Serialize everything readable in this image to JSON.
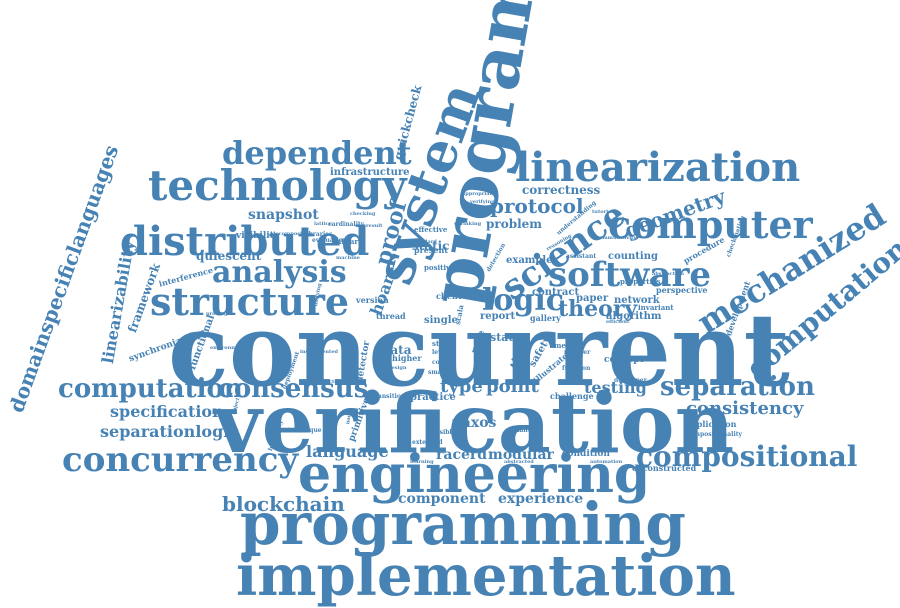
{
  "accent_color": "#4682b4",
  "words": [
    {
      "text": "concurrent"
    },
    {
      "text": "verification"
    },
    {
      "text": "programming"
    },
    {
      "text": "implementation"
    },
    {
      "text": "engineering"
    },
    {
      "text": "program"
    },
    {
      "text": "system"
    },
    {
      "text": "linearization"
    },
    {
      "text": "technology"
    },
    {
      "text": "distributed"
    },
    {
      "text": "structure"
    },
    {
      "text": "dependent"
    },
    {
      "text": "analysis"
    },
    {
      "text": "science"
    },
    {
      "text": "computer"
    },
    {
      "text": "software"
    },
    {
      "text": "logic"
    },
    {
      "text": "mechanized"
    },
    {
      "text": "computational"
    },
    {
      "text": "theory"
    },
    {
      "text": "protocol"
    },
    {
      "text": "geometry"
    },
    {
      "text": "computation"
    },
    {
      "text": "consensus"
    },
    {
      "text": "separation"
    },
    {
      "text": "concurrency"
    },
    {
      "text": "compositional"
    },
    {
      "text": "consistency"
    },
    {
      "text": "specification"
    },
    {
      "text": "separationlogic"
    },
    {
      "text": "blockchain"
    },
    {
      "text": "language"
    },
    {
      "text": "modular"
    },
    {
      "text": "racerd"
    },
    {
      "text": "paxos"
    },
    {
      "text": "type"
    },
    {
      "text": "point"
    },
    {
      "text": "testing"
    },
    {
      "text": "component"
    },
    {
      "text": "experience"
    },
    {
      "text": "domainspecificlanguages"
    },
    {
      "text": "linearizability"
    },
    {
      "text": "quickcheck"
    },
    {
      "text": "snapshot"
    },
    {
      "text": "infrastructure"
    },
    {
      "text": "correctness"
    },
    {
      "text": "counting"
    },
    {
      "text": "framework"
    },
    {
      "text": "synchronization"
    },
    {
      "text": "functional"
    },
    {
      "text": "quiescent"
    },
    {
      "text": "interference"
    },
    {
      "text": "visibility"
    },
    {
      "text": "hoare"
    },
    {
      "text": "proof"
    },
    {
      "text": "static"
    },
    {
      "text": "problem"
    },
    {
      "text": "example"
    },
    {
      "text": "contract"
    },
    {
      "text": "paper"
    },
    {
      "text": "network"
    },
    {
      "text": "algorithm"
    },
    {
      "text": "gallery"
    },
    {
      "text": "perspective"
    },
    {
      "text": "procedure"
    },
    {
      "text": "development"
    },
    {
      "text": "data"
    },
    {
      "text": "state"
    },
    {
      "text": "report"
    },
    {
      "text": "single"
    },
    {
      "text": "thread"
    },
    {
      "text": "version"
    },
    {
      "text": "client"
    },
    {
      "text": "practice"
    },
    {
      "text": "concept"
    },
    {
      "text": "challenge"
    },
    {
      "text": "condition"
    },
    {
      "text": "application"
    },
    {
      "text": "deconstructed"
    },
    {
      "text": "compositionality"
    },
    {
      "text": "present"
    },
    {
      "text": "effective"
    },
    {
      "text": "library"
    },
    {
      "text": "libraries"
    },
    {
      "text": "evaluation"
    },
    {
      "text": "cardinality"
    },
    {
      "text": "positive"
    },
    {
      "text": "scala"
    },
    {
      "text": "primitive"
    },
    {
      "text": "detector"
    },
    {
      "text": "race"
    },
    {
      "text": "safety"
    },
    {
      "text": "time"
    },
    {
      "text": "illustrate"
    },
    {
      "text": "method"
    },
    {
      "text": "function"
    },
    {
      "text": "developer"
    },
    {
      "text": "number"
    },
    {
      "text": "possible"
    },
    {
      "text": "semantic"
    },
    {
      "text": "extended"
    },
    {
      "text": "abstracted"
    },
    {
      "text": "automation"
    },
    {
      "text": "higher"
    },
    {
      "text": "style"
    },
    {
      "text": "level"
    },
    {
      "text": "code"
    },
    {
      "text": "smart"
    },
    {
      "text": "invariant"
    },
    {
      "text": "properties"
    },
    {
      "text": "abstraction"
    },
    {
      "text": "shrinking"
    },
    {
      "text": "standard"
    },
    {
      "text": "approach"
    },
    {
      "text": "technique"
    },
    {
      "text": "deployment"
    },
    {
      "text": "nodes"
    },
    {
      "text": "transition"
    },
    {
      "text": "design"
    },
    {
      "text": "efficient"
    },
    {
      "text": "checkmating"
    },
    {
      "text": "appropriate"
    },
    {
      "text": "understanding"
    },
    {
      "text": "detection"
    },
    {
      "text": "assistant"
    },
    {
      "text": "reasoning"
    },
    {
      "text": "tutorial"
    },
    {
      "text": "instrumented"
    },
    {
      "text": "unifying"
    },
    {
      "text": "machine"
    },
    {
      "text": "architecture"
    },
    {
      "text": "learning"
    },
    {
      "text": "proving"
    },
    {
      "text": "hierarchy"
    },
    {
      "text": "decomposition"
    },
    {
      "text": "environment"
    },
    {
      "text": "object"
    },
    {
      "text": "result"
    },
    {
      "text": "verifying"
    },
    {
      "text": "lattice"
    },
    {
      "text": "commutativity"
    },
    {
      "text": "reduction"
    },
    {
      "text": "checking"
    }
  ]
}
